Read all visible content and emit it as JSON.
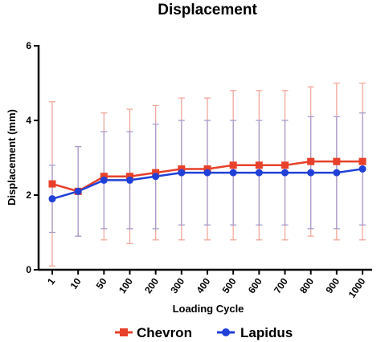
{
  "chart_data": {
    "type": "line",
    "title": "Displacement",
    "xlabel": "Loading Cycle",
    "ylabel": "Displacement (mm)",
    "categories": [
      "1",
      "10",
      "50",
      "100",
      "200",
      "300",
      "400",
      "500",
      "600",
      "700",
      "800",
      "900",
      "1000"
    ],
    "ylim": [
      0,
      6
    ],
    "yticks": [
      "0",
      "2",
      "4",
      "6"
    ],
    "grid": false,
    "legend_position": "bottom-center",
    "series": [
      {
        "name": "Chevron",
        "color": "#e8402a",
        "error_color": "#f0a89c",
        "marker": "square",
        "values": [
          2.3,
          2.1,
          2.5,
          2.5,
          2.6,
          2.7,
          2.7,
          2.8,
          2.8,
          2.8,
          2.9,
          2.9,
          2.9
        ],
        "upper": [
          4.5,
          3.3,
          4.2,
          4.3,
          4.4,
          4.6,
          4.6,
          4.8,
          4.8,
          4.8,
          4.9,
          5.0,
          5.0
        ],
        "lower": [
          0.1,
          0.9,
          0.8,
          0.7,
          0.8,
          0.8,
          0.8,
          0.8,
          0.8,
          0.8,
          0.9,
          0.8,
          0.8
        ]
      },
      {
        "name": "Lapidus",
        "color": "#2040d8",
        "error_color": "#a99ccc",
        "marker": "circle",
        "values": [
          1.9,
          2.1,
          2.4,
          2.4,
          2.5,
          2.6,
          2.6,
          2.6,
          2.6,
          2.6,
          2.6,
          2.6,
          2.7
        ],
        "upper": [
          2.8,
          3.3,
          3.7,
          3.7,
          3.9,
          4.0,
          4.0,
          4.0,
          4.0,
          4.0,
          4.1,
          4.1,
          4.2
        ],
        "lower": [
          1.0,
          0.9,
          1.1,
          1.1,
          1.1,
          1.2,
          1.2,
          1.2,
          1.2,
          1.2,
          1.1,
          1.1,
          1.2
        ]
      }
    ]
  }
}
